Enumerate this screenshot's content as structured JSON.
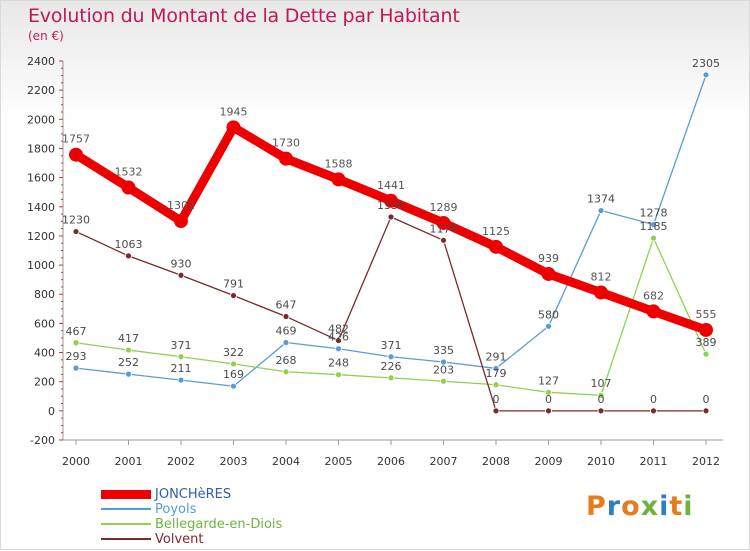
{
  "header": {
    "title": "Evolution du Montant de la Dette par Habitant",
    "subtitle": "(en €)"
  },
  "logo": {
    "text": "Proxiti",
    "colors": [
      "#e57c1e",
      "#2e7fc1",
      "#e57c1e",
      "#6eb33f",
      "#2e7fc1",
      "#e57c1e",
      "#6eb33f"
    ]
  },
  "chart_data": {
    "type": "line",
    "title": "Evolution du Montant de la Dette par Habitant",
    "subtitle": "(en €)",
    "x": [
      "2000",
      "2001",
      "2002",
      "2003",
      "2004",
      "2005",
      "2006",
      "2007",
      "2008",
      "2009",
      "2010",
      "2011",
      "2012"
    ],
    "ylim": [
      -200,
      2400
    ],
    "yticks": [
      -200,
      0,
      200,
      400,
      600,
      800,
      1000,
      1200,
      1400,
      1600,
      1800,
      2000,
      2200,
      2400
    ],
    "grid": false,
    "legend_position": "bottom-left",
    "series": [
      {
        "name": "JONCHèRES",
        "color": "#ee0000",
        "labelColor": "#555555",
        "values": [
          1757,
          1532,
          1302,
          1945,
          1730,
          1588,
          1441,
          1289,
          1125,
          939,
          812,
          682,
          555
        ],
        "thick": true
      },
      {
        "name": "Poyols",
        "color": "#5b9bd5",
        "labelColor": "#4a4a4a",
        "values": [
          293,
          252,
          211,
          169,
          469,
          426,
          371,
          335,
          291,
          580,
          1374,
          1278,
          2305
        ]
      },
      {
        "name": "Bellegarde-en-Diois",
        "color": "#8fd14f",
        "labelColor": "#4a4a4a",
        "values": [
          467,
          417,
          371,
          322,
          268,
          248,
          226,
          203,
          179,
          127,
          107,
          1185,
          389
        ]
      },
      {
        "name": "Volvent",
        "color": "#7a2a2a",
        "labelColor": "#4a4a4a",
        "values": [
          1230,
          1063,
          930,
          791,
          647,
          482,
          1330,
          1170,
          0,
          0,
          0,
          0,
          0
        ]
      }
    ]
  }
}
